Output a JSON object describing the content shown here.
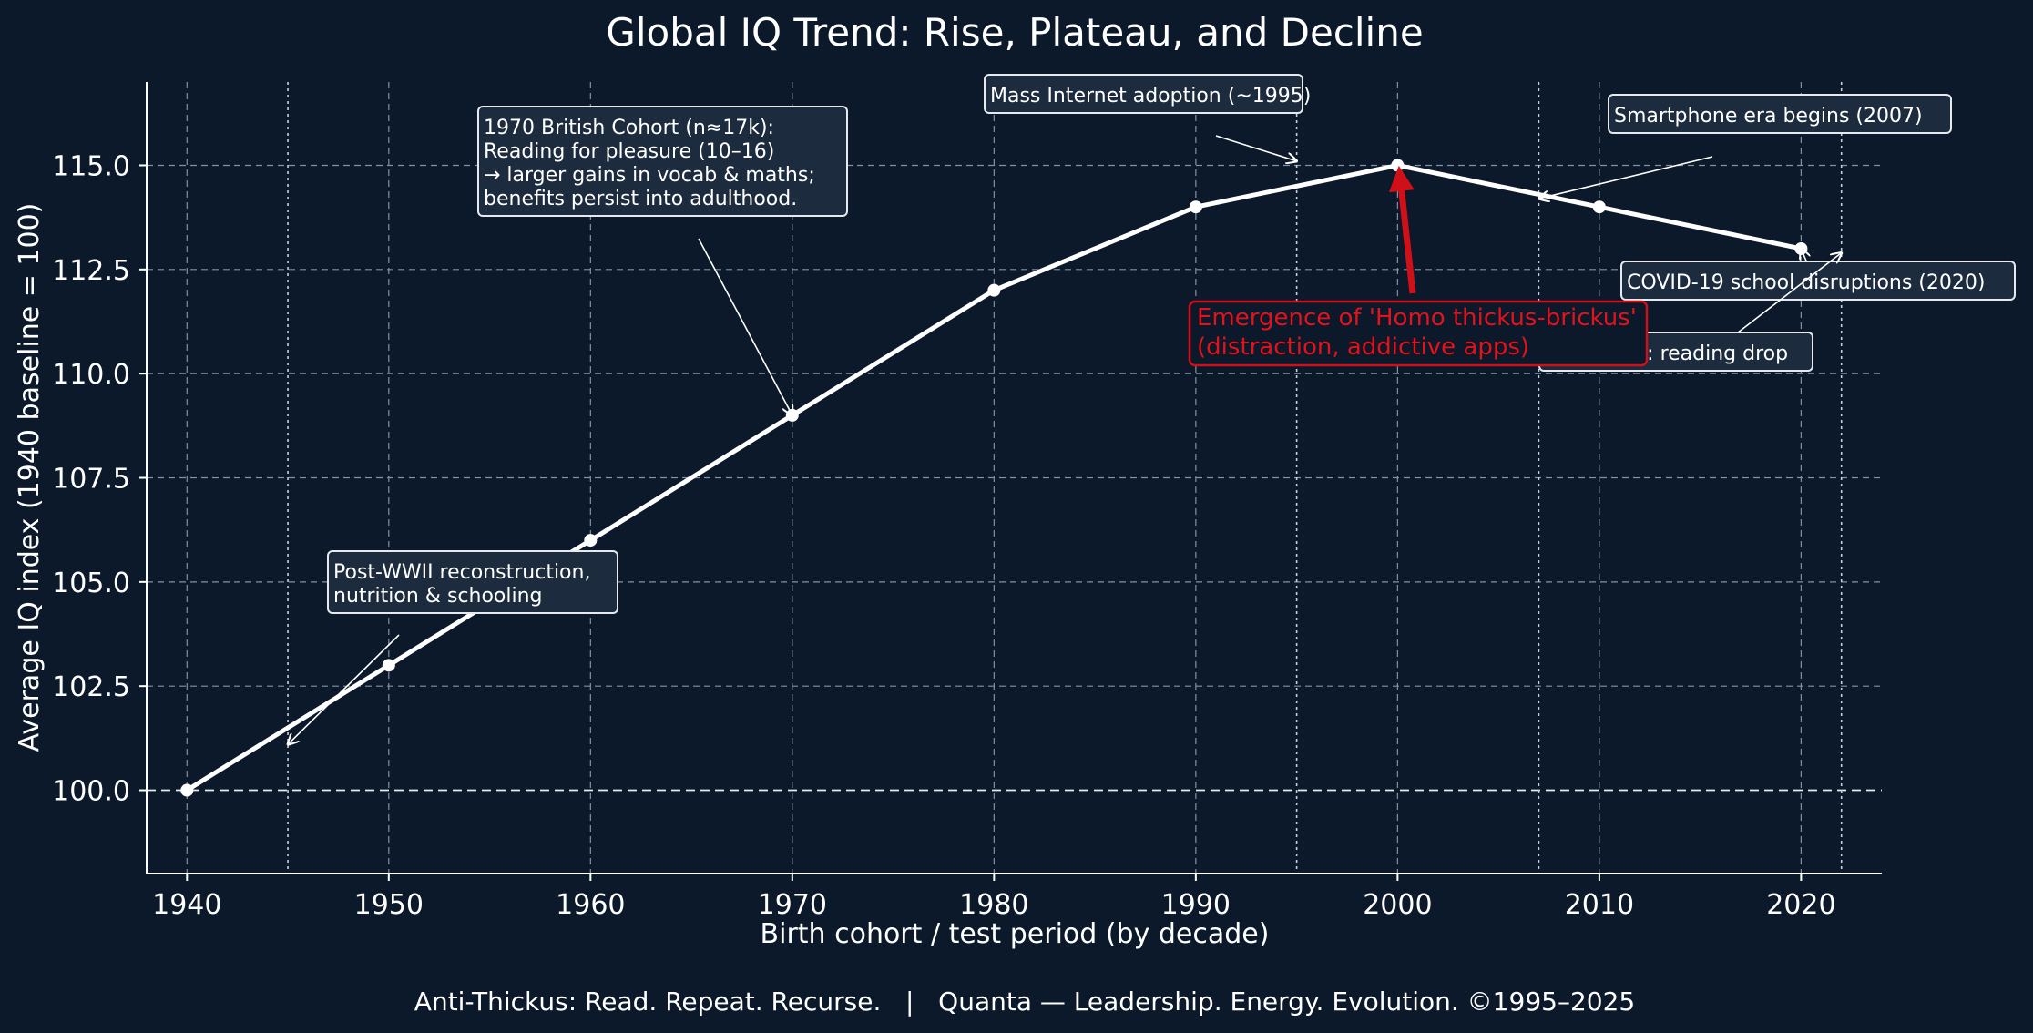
{
  "chart_data": {
    "type": "line",
    "title": "Global IQ Trend: Rise, Plateau, and Decline",
    "xlabel": "Birth cohort / test period (by decade)",
    "ylabel": "Average IQ index (1940 baseline = 100)",
    "x": [
      1940,
      1950,
      1960,
      1970,
      1980,
      1990,
      2000,
      2010,
      2020
    ],
    "series": [
      {
        "values": [
          100,
          103,
          106,
          109,
          112,
          114,
          115,
          114,
          113
        ]
      }
    ],
    "xlim": [
      1938,
      2024
    ],
    "ylim": [
      98,
      117
    ],
    "xticks": [
      "1940",
      "1950",
      "1960",
      "1970",
      "1980",
      "1990",
      "2000",
      "2010",
      "2020"
    ],
    "yticks": [
      "100.0",
      "102.5",
      "105.0",
      "107.5",
      "110.0",
      "112.5",
      "115.0"
    ],
    "grid": true,
    "baseline_y": 100,
    "event_lines_x": [
      1945,
      1995,
      2007,
      2022
    ],
    "annotations": [
      {
        "id": "postwar",
        "lines": [
          "Post-WWII reconstruction,",
          "nutrition & schooling"
        ],
        "target": [
          1945,
          101.1
        ]
      },
      {
        "id": "cohort1970",
        "lines": [
          "1970 British Cohort (n≈17k):",
          "Reading for pleasure (10–16)",
          "→ larger gains in vocab & maths;",
          "benefits persist into adulthood."
        ],
        "target": [
          1970,
          109
        ]
      },
      {
        "id": "internet",
        "lines": [
          "Mass Internet adoption (~1995)"
        ],
        "target": [
          1995,
          115.1
        ]
      },
      {
        "id": "smartphone",
        "lines": [
          "Smartphone era begins (2007)"
        ],
        "target": [
          2007,
          114.2
        ]
      },
      {
        "id": "covid",
        "lines": [
          "COVID-19 school disruptions (2020)"
        ],
        "target": [
          2020,
          113
        ]
      },
      {
        "id": "pisa",
        "lines": [
          "PISA 2022: reading drop"
        ],
        "target": [
          2022,
          112.9
        ]
      }
    ],
    "highlight": {
      "lines": [
        "Emergence of 'Homo thickus-brickus'",
        "(distraction, addictive apps)"
      ],
      "target": [
        2000,
        115
      ],
      "color": "#d01019"
    },
    "colors": {
      "background": "#0b192b",
      "line": "#ffffff",
      "grid": "#8391a3",
      "highlight": "#d01019"
    }
  },
  "footer": "Anti-Thickus: Read. Repeat. Recurse.   |   Quanta — Leadership. Energy. Evolution. ©1995–2025"
}
